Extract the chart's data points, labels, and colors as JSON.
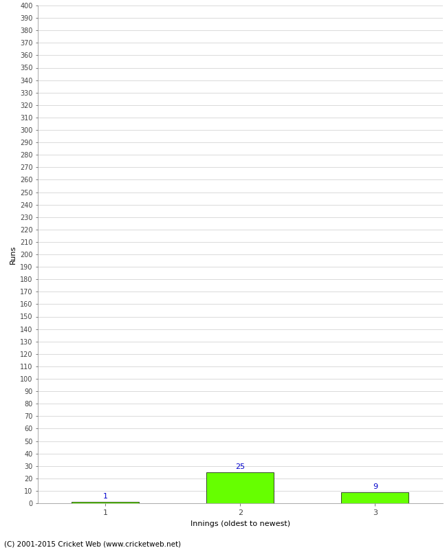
{
  "categories": [
    1,
    2,
    3
  ],
  "values": [
    1,
    25,
    9
  ],
  "bar_color": "#66ff00",
  "bar_edge_color": "#000000",
  "value_label_color": "#0000cc",
  "xlabel": "Innings (oldest to newest)",
  "ylabel": "Runs",
  "ylim": [
    0,
    400
  ],
  "yticks": [
    0,
    10,
    20,
    30,
    40,
    50,
    60,
    70,
    80,
    90,
    100,
    110,
    120,
    130,
    140,
    150,
    160,
    170,
    180,
    190,
    200,
    210,
    220,
    230,
    240,
    250,
    260,
    270,
    280,
    290,
    300,
    310,
    320,
    330,
    340,
    350,
    360,
    370,
    380,
    390,
    400
  ],
  "background_color": "#ffffff",
  "grid_color": "#cccccc",
  "footer_text": "(C) 2001-2015 Cricket Web (www.cricketweb.net)",
  "bar_width": 0.5,
  "xlim": [
    0.5,
    3.5
  ]
}
